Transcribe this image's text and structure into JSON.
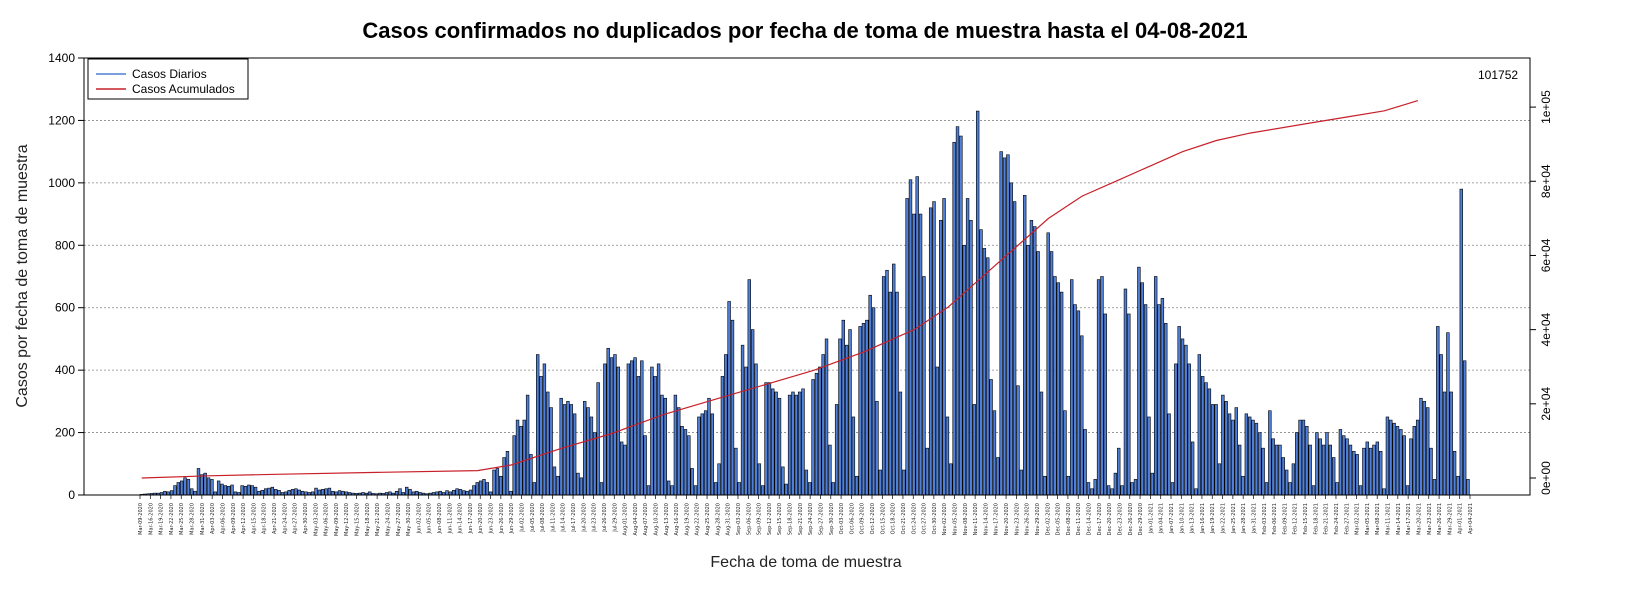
{
  "chart_data": {
    "type": "bar",
    "title": "Casos confirmados no duplicados por fecha de toma de muestra hasta el 04-08-2021",
    "xlabel": "Fecha de toma de muestra",
    "ylabel": "Casos por fecha de toma de muestra",
    "ylim": [
      0,
      1400
    ],
    "yticks": [
      0,
      200,
      400,
      600,
      800,
      1000,
      1200,
      1400
    ],
    "y2lim": [
      0,
      110000
    ],
    "y2ticks": [
      "0e+00",
      "2e+04",
      "4e+04",
      "6e+04",
      "8e+04",
      "1e+05"
    ],
    "grid": "horizontal dotted",
    "legend_position": "top-left",
    "cumulative_end_label": "101752",
    "start_date": "2020-03-09",
    "x_tick_labels": [
      "Mar-09-2020",
      "Mar-16-2020",
      "Mar-19-2020",
      "Mar-22-2020",
      "Mar-25-2020",
      "Mar-28-2020",
      "Mar-31-2020",
      "Apr-03-2020",
      "Apr-06-2020",
      "Apr-09-2020",
      "Apr-12-2020",
      "Apr-15-2020",
      "Apr-18-2020",
      "Apr-21-2020",
      "Apr-24-2020",
      "Apr-27-2020",
      "Apr-30-2020",
      "May-03-2020",
      "May-06-2020",
      "May-09-2020",
      "May-12-2020",
      "May-15-2020",
      "May-18-2020",
      "May-21-2020",
      "May-24-2020",
      "May-27-2020",
      "May-30-2020",
      "Jun-02-2020",
      "Jun-05-2020",
      "Jun-08-2020",
      "Jun-11-2020",
      "Jun-14-2020",
      "Jun-17-2020",
      "Jun-20-2020",
      "Jun-23-2020",
      "Jun-26-2020",
      "Jun-29-2020",
      "Jul-02-2020",
      "Jul-05-2020",
      "Jul-08-2020",
      "Jul-11-2020",
      "Jul-14-2020",
      "Jul-17-2020",
      "Jul-20-2020",
      "Jul-23-2020",
      "Jul-26-2020",
      "Jul-29-2020",
      "Aug-01-2020",
      "Aug-04-2020",
      "Aug-07-2020",
      "Aug-10-2020",
      "Aug-13-2020",
      "Aug-16-2020",
      "Aug-19-2020",
      "Aug-22-2020",
      "Aug-25-2020",
      "Aug-28-2020",
      "Aug-31-2020",
      "Sep-03-2020",
      "Sep-06-2020",
      "Sep-09-2020",
      "Sep-12-2020",
      "Sep-15-2020",
      "Sep-18-2020",
      "Sep-21-2020",
      "Sep-24-2020",
      "Sep-27-2020",
      "Sep-30-2020",
      "Oct-03-2020",
      "Oct-06-2020",
      "Oct-09-2020",
      "Oct-12-2020",
      "Oct-15-2020",
      "Oct-18-2020",
      "Oct-21-2020",
      "Oct-24-2020",
      "Oct-27-2020",
      "Oct-30-2020",
      "Nov-02-2020",
      "Nov-05-2020",
      "Nov-08-2020",
      "Nov-11-2020",
      "Nov-14-2020",
      "Nov-17-2020",
      "Nov-20-2020",
      "Nov-23-2020",
      "Nov-26-2020",
      "Nov-29-2020",
      "Dec-02-2020",
      "Dec-05-2020",
      "Dec-08-2020",
      "Dec-11-2020",
      "Dec-14-2020",
      "Dec-17-2020",
      "Dec-20-2020",
      "Dec-23-2020",
      "Dec-26-2020",
      "Dec-29-2020",
      "Jan-01-2021",
      "Jan-04-2021",
      "Jan-07-2021",
      "Jan-10-2021",
      "Jan-13-2021",
      "Jan-16-2021",
      "Jan-19-2021",
      "Jan-22-2021",
      "Jan-25-2021",
      "Jan-28-2021",
      "Jan-31-2021",
      "Feb-03-2021",
      "Feb-06-2021",
      "Feb-09-2021",
      "Feb-12-2021",
      "Feb-15-2021",
      "Feb-18-2021",
      "Feb-21-2021",
      "Feb-24-2021",
      "Feb-27-2021",
      "Mar-02-2021",
      "Mar-05-2021",
      "Mar-08-2021",
      "Mar-11-2021",
      "Mar-14-2021",
      "Mar-17-2021",
      "Mar-20-2021",
      "Mar-23-2021",
      "Mar-26-2021",
      "Mar-29-2021",
      "Apr-01-2021",
      "Apr-04-2021"
    ],
    "series": [
      {
        "name": "Casos Diarios",
        "color": "#4f7fd6",
        "values": [
          2,
          3,
          4,
          5,
          6,
          6,
          8,
          12,
          10,
          14,
          30,
          40,
          45,
          55,
          50,
          20,
          12,
          85,
          65,
          70,
          55,
          50,
          10,
          45,
          35,
          30,
          28,
          32,
          10,
          8,
          30,
          28,
          32,
          30,
          25,
          12,
          15,
          20,
          22,
          25,
          18,
          15,
          8,
          10,
          15,
          18,
          20,
          16,
          12,
          10,
          8,
          10,
          22,
          16,
          18,
          20,
          22,
          12,
          10,
          14,
          12,
          10,
          8,
          6,
          5,
          6,
          8,
          6,
          10,
          5,
          4,
          6,
          5,
          8,
          10,
          6,
          12,
          20,
          8,
          25,
          18,
          10,
          12,
          8,
          6,
          4,
          6,
          8,
          10,
          12,
          8,
          14,
          10,
          15,
          20,
          18,
          14,
          12,
          16,
          30,
          40,
          45,
          50,
          40,
          10,
          80,
          85,
          60,
          120,
          140,
          12,
          190,
          240,
          220,
          240,
          320,
          130,
          40,
          450,
          380,
          420,
          330,
          280,
          90,
          60,
          310,
          290,
          300,
          290,
          260,
          70,
          55,
          300,
          280,
          250,
          200,
          360,
          40,
          420,
          470,
          440,
          450,
          410,
          170,
          160,
          420,
          430,
          440,
          380,
          430,
          190,
          30,
          410,
          380,
          420,
          320,
          310,
          45,
          30,
          320,
          280,
          220,
          210,
          190,
          85,
          30,
          250,
          260,
          270,
          310,
          260,
          40,
          100,
          380,
          450,
          620,
          560,
          150,
          40,
          480,
          410,
          690,
          530,
          420,
          100,
          30,
          360,
          360,
          340,
          330,
          310,
          90,
          35,
          320,
          330,
          320,
          330,
          340,
          80,
          40,
          370,
          390,
          410,
          450,
          500,
          160,
          40,
          290,
          500,
          560,
          480,
          530,
          250,
          60,
          540,
          550,
          560,
          640,
          600,
          300,
          80,
          700,
          720,
          650,
          740,
          650,
          330,
          80,
          950,
          1010,
          900,
          1020,
          900,
          700,
          150,
          920,
          940,
          410,
          880,
          950,
          250,
          100,
          1130,
          1180,
          1150,
          800,
          950,
          880,
          290,
          1230,
          850,
          790,
          760,
          370,
          270,
          120,
          1100,
          1080,
          1090,
          1000,
          940,
          350,
          80,
          960,
          800,
          880,
          860,
          780,
          330,
          60,
          840,
          780,
          700,
          680,
          650,
          270,
          60,
          690,
          610,
          590,
          510,
          210,
          40,
          20,
          50,
          690,
          700,
          580,
          30,
          20,
          70,
          150,
          30,
          660,
          580,
          40,
          50,
          730,
          680,
          610,
          250,
          70,
          700,
          610,
          630,
          550,
          260,
          40,
          420,
          540,
          500,
          480,
          420,
          170,
          20,
          450,
          380,
          360,
          340,
          290,
          290,
          100,
          320,
          300,
          260,
          240,
          280,
          160,
          60,
          260,
          250,
          240,
          230,
          200,
          150,
          40,
          270,
          180,
          160,
          160,
          120,
          80,
          40,
          100,
          200,
          240,
          240,
          220,
          160,
          30,
          200,
          180,
          160,
          200,
          160,
          120,
          40,
          210,
          190,
          180,
          160,
          140,
          130,
          30,
          150,
          170,
          150,
          160,
          170,
          140,
          20,
          250,
          240,
          230,
          220,
          210,
          190,
          30,
          180,
          220,
          240,
          310,
          300,
          280,
          150,
          50,
          540,
          450,
          330,
          520,
          330,
          140,
          60,
          980,
          430,
          50
        ]
      },
      {
        "name": "Casos Acumulados",
        "color": "#c8202a",
        "values_sampled": [
          [
            0,
            0
          ],
          [
            20,
            600
          ],
          [
            40,
            1000
          ],
          [
            70,
            1500
          ],
          [
            100,
            2000
          ],
          [
            110,
            3500
          ],
          [
            125,
            8000
          ],
          [
            140,
            12000
          ],
          [
            155,
            17000
          ],
          [
            170,
            21000
          ],
          [
            185,
            25000
          ],
          [
            200,
            29000
          ],
          [
            215,
            34000
          ],
          [
            230,
            40000
          ],
          [
            240,
            46000
          ],
          [
            250,
            54000
          ],
          [
            260,
            62000
          ],
          [
            270,
            70000
          ],
          [
            280,
            76000
          ],
          [
            290,
            80000
          ],
          [
            300,
            84000
          ],
          [
            310,
            88000
          ],
          [
            320,
            91000
          ],
          [
            330,
            93000
          ],
          [
            340,
            94500
          ],
          [
            350,
            96000
          ],
          [
            360,
            97500
          ],
          [
            370,
            99000
          ],
          [
            380,
            101752
          ]
        ]
      }
    ]
  }
}
